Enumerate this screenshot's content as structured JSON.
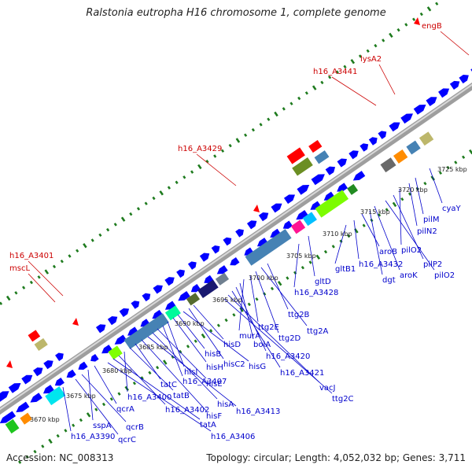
{
  "title": "Ralstonia eutropha H16 chromosome 1, complete genome",
  "footer": {
    "accession": "Accession: NC_008313",
    "stats": "Topology: circular; Length: 4,052,032 bp; Genes: 3,711"
  },
  "colors": {
    "backbone": "#a9a9a9",
    "gene_forward": "#0000ff",
    "label_blue": "#0000cc",
    "label_red": "#cc0000",
    "tick": "#1e7b1e",
    "kbp_text": "#222222"
  },
  "kbp_ticks": [
    "3670 kbp",
    "3675 kbp",
    "3680 kbp",
    "3685 kbp",
    "3690 kbp",
    "3695 kbp",
    "3700 kbp",
    "3705 kbp",
    "3710 kbp",
    "3715 kbp",
    "3720 kbp",
    "3725 kbp"
  ],
  "red_labels": [
    "engB",
    "lysA2",
    "h16_A3441",
    "h16_A3429",
    "h16_A3401",
    "mscL"
  ],
  "blue_labels": [
    "cyaY",
    "pilM",
    "pilN2",
    "pilO2",
    "pilP2",
    "pilO2",
    "aroK",
    "dgt",
    "aroB",
    "h16_A3432",
    "gltB1",
    "gltD",
    "h16_A3428",
    "ttg2B",
    "ttg2A",
    "ttg2D",
    "ttg2E",
    "murA",
    "bolA",
    "h16_A3420",
    "h16_A3421",
    "vacJ",
    "ttg2C",
    "hisD",
    "hisC2",
    "hisG",
    "hisB",
    "hisH",
    "hisI",
    "h16_A3407",
    "hisE",
    "hisA",
    "h16_A3413",
    "hisF",
    "tatC",
    "tatB",
    "h16_A3400",
    "h16_A3402",
    "tatA",
    "h16_A3406",
    "qcrA",
    "sspA",
    "qcrB",
    "qcrC",
    "h16_A3390"
  ]
}
